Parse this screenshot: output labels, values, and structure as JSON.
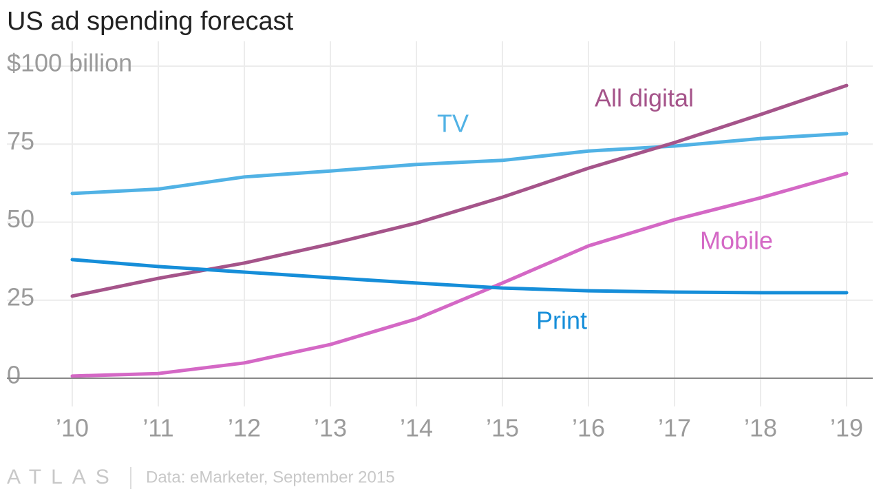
{
  "chart_data": {
    "type": "line",
    "title": "US ad spending forecast",
    "categories": [
      "’10",
      "’11",
      "’12",
      "’13",
      "’14",
      "’15",
      "’16",
      "’17",
      "’18",
      "’19"
    ],
    "series": [
      {
        "name": "TV",
        "color": "#51b2e5",
        "values": [
          59.2,
          60.6,
          64.5,
          66.4,
          68.5,
          69.8,
          72.8,
          74.4,
          76.8,
          78.4
        ]
      },
      {
        "name": "All digital",
        "color": "#a5548a",
        "values": [
          26.3,
          32,
          36.9,
          43,
          49.7,
          58,
          67.3,
          75.5,
          84.5,
          93.8
        ]
      },
      {
        "name": "Mobile",
        "color": "#d468c5",
        "values": [
          0.7,
          1.5,
          4.9,
          10.8,
          19,
          30.5,
          42.4,
          50.8,
          57.8,
          65.6
        ]
      },
      {
        "name": "Print",
        "color": "#168ed9",
        "values": [
          38,
          35.8,
          34,
          32.2,
          30.5,
          28.9,
          28,
          27.6,
          27.4,
          27.4
        ]
      }
    ],
    "ylim": [
      0,
      100
    ],
    "yticks": [
      0,
      25,
      50,
      75,
      {
        "value": 100,
        "label": "$100 billion"
      }
    ],
    "grid": true,
    "brand": "ATLAS",
    "source": "Data: eMarketer, September 2015"
  }
}
